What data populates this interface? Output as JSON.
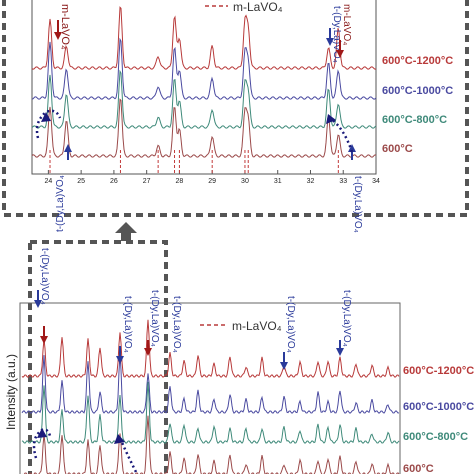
{
  "chart_data": [
    {
      "type": "line",
      "panel": "zoom",
      "xlim": [
        23.5,
        34
      ],
      "x_ticks": [
        "24",
        "25",
        "26",
        "27",
        "28",
        "29",
        "30",
        "31",
        "32",
        "33",
        "34"
      ],
      "legend": "m-LaVO₄",
      "series": [
        {
          "name": "600°C-1200°C",
          "color": "#b83a3a"
        },
        {
          "name": "600°C-1000°C",
          "color": "#4a4aa0"
        },
        {
          "name": "600°C-800°C",
          "color": "#3f8a7a"
        },
        {
          "name": "600°C",
          "color": "#9b4a4a"
        }
      ],
      "peaks": [
        24.05,
        24.55,
        26.2,
        27.35,
        27.85,
        28.0,
        29.0,
        30.0,
        30.1,
        32.55,
        32.85
      ],
      "reference_peaks_m_LaVO4": [
        24.05,
        26.2,
        27.35,
        27.85,
        28.0,
        29.0,
        30.0,
        30.1,
        32.85
      ],
      "annotations": [
        "m-LaVO₄",
        "t-(Dy,La)VO₄",
        "t-(Dy,La)VO₄",
        "t-(Dy,La)VO₄",
        "m-LaVO₄"
      ]
    },
    {
      "type": "line",
      "panel": "full",
      "ylabel": "Intensity (a.u.)",
      "legend": "m-LaVO₄",
      "series": [
        {
          "name": "600°C-1200°C",
          "color": "#b83a3a"
        },
        {
          "name": "600°C-1000°C",
          "color": "#4a4aa0"
        },
        {
          "name": "600°C-800°C",
          "color": "#3f8a7a"
        },
        {
          "name": "600°C",
          "color": "#9b4a4a"
        }
      ],
      "annotations": [
        "t-(Dy,La)VO₄",
        "t-(Dy,La)VO₄",
        "t-(Dy,La)VO₄",
        "t-(Dy,La)VO₄",
        "t-(Dy,La)VO₄",
        "t-(Dy,La)VO₄"
      ]
    }
  ]
}
